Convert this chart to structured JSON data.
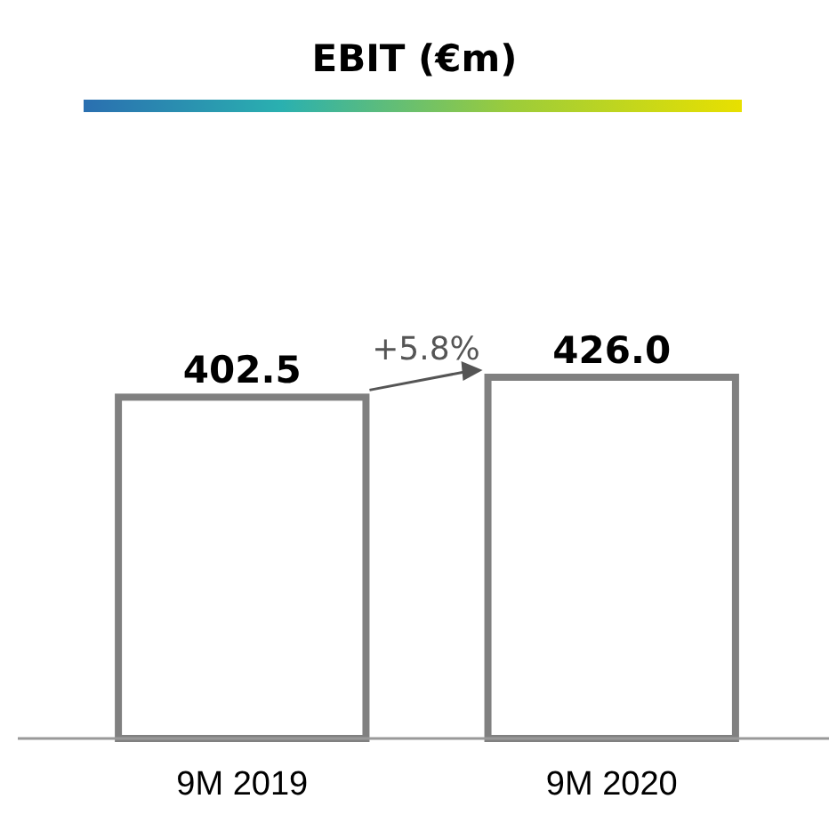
{
  "chart_data": {
    "type": "bar",
    "title": "EBIT (€m)",
    "categories": [
      "9M 2019",
      "9M 2020"
    ],
    "values": [
      402.5,
      426.0
    ],
    "value_labels": [
      "402.5",
      "426.0"
    ],
    "color": "#808080",
    "annotations": [
      "+5.8%"
    ]
  }
}
